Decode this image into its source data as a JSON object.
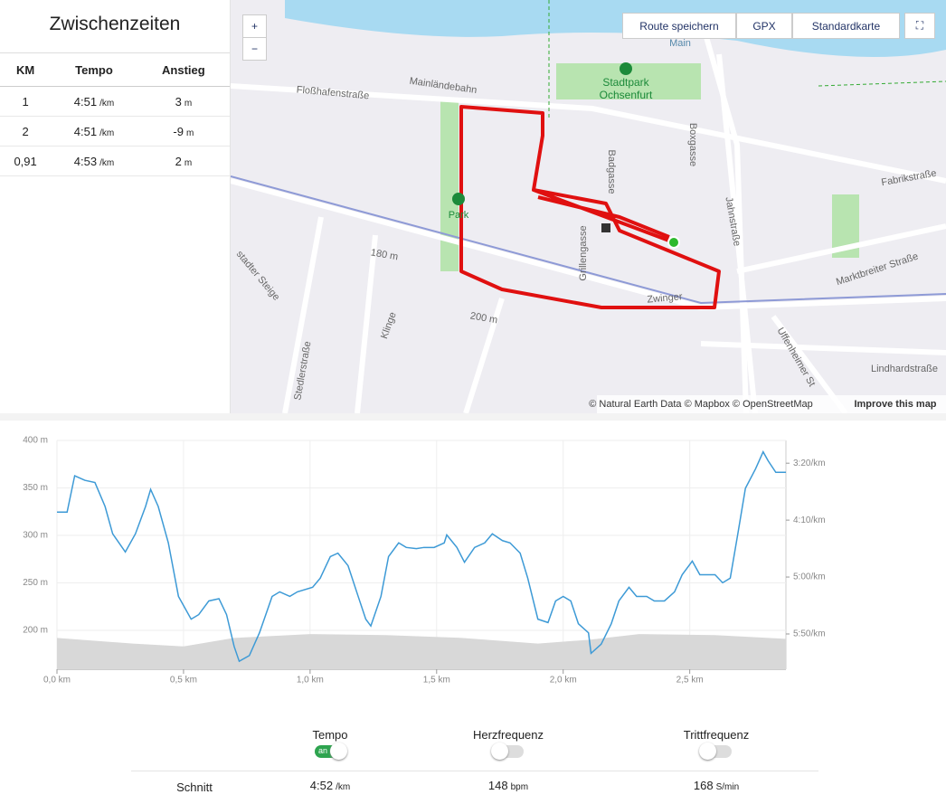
{
  "splits": {
    "title": "Zwischenzeiten",
    "headers": [
      "KM",
      "Tempo",
      "Anstieg"
    ],
    "rows": [
      {
        "km": "1",
        "tempo": "4:51",
        "tempo_unit": "/km",
        "ascent": "3",
        "ascent_unit": "m"
      },
      {
        "km": "2",
        "tempo": "4:51",
        "tempo_unit": "/km",
        "ascent": "-9",
        "ascent_unit": "m"
      },
      {
        "km": "0,91",
        "tempo": "4:53",
        "tempo_unit": "/km",
        "ascent": "2",
        "ascent_unit": "m"
      }
    ]
  },
  "map": {
    "zoom_in": "+",
    "zoom_out": "−",
    "save_route": "Route speichern",
    "gpx": "GPX",
    "style": "Standardkarte",
    "labels": [
      "Main",
      "Mainländebahn",
      "Floßhafenstraße",
      "Stadtpark",
      "Ochsenfurt",
      "Park",
      "Badgasse",
      "Boxgasse",
      "Jahnstraße",
      "Fabrikstraße",
      "Grillengasse",
      "Marktbreiter Straße",
      "Zwinger",
      "180 m",
      "200 m",
      "stadter Steige",
      "Klinge",
      "Stedlerstraße",
      "Uffenheimer St",
      "Lindhardstraße"
    ],
    "attribution": "© Natural Earth Data © Mapbox © OpenStreetMap",
    "improve": "Improve this map"
  },
  "chart_data": {
    "type": "line",
    "xlim": [
      0,
      2.88
    ],
    "xticks": [
      {
        "value": 0,
        "label": "0,0 km"
      },
      {
        "value": 0.5,
        "label": "0,5 km"
      },
      {
        "value": 1,
        "label": "1,0 km"
      },
      {
        "value": 1.5,
        "label": "1,5 km"
      },
      {
        "value": 2,
        "label": "2,0 km"
      },
      {
        "value": 2.5,
        "label": "2,5 km"
      }
    ],
    "ylim": [
      159,
      400
    ],
    "yticks": [
      {
        "value": 200,
        "label": "200 m"
      },
      {
        "value": 250,
        "label": "250 m"
      },
      {
        "value": 300,
        "label": "300 m"
      },
      {
        "value": 350,
        "label": "350 m"
      },
      {
        "value": 400,
        "label": "400 m"
      }
    ],
    "y2lim": [
      381,
      180
    ],
    "y2ticks": [
      {
        "value": 200,
        "label": "3:20/km"
      },
      {
        "value": 250,
        "label": "4:10/km"
      },
      {
        "value": 300,
        "label": "5:00/km"
      },
      {
        "value": 350,
        "label": "5:50/km"
      }
    ],
    "grid": true,
    "series": [
      {
        "type": "area",
        "color": "#d8d8d8",
        "x": [
          0,
          0.3,
          0.5,
          0.7,
          1.0,
          1.3,
          1.6,
          1.9,
          2.1,
          2.3,
          2.6,
          2.88
        ],
        "values": [
          192,
          186,
          183,
          192,
          196,
          195,
          192,
          186,
          190,
          196,
          195,
          191
        ]
      },
      {
        "type": "line",
        "axis": "y2",
        "color": "#3d9ad6",
        "x": [
          0,
          0.04,
          0.07,
          0.11,
          0.15,
          0.19,
          0.22,
          0.27,
          0.31,
          0.35,
          0.37,
          0.4,
          0.44,
          0.48,
          0.53,
          0.56,
          0.6,
          0.64,
          0.67,
          0.7,
          0.72,
          0.76,
          0.8,
          0.85,
          0.88,
          0.92,
          0.95,
          1.01,
          1.04,
          1.08,
          1.11,
          1.15,
          1.19,
          1.22,
          1.24,
          1.28,
          1.31,
          1.35,
          1.38,
          1.42,
          1.45,
          1.49,
          1.53,
          1.54,
          1.58,
          1.61,
          1.65,
          1.69,
          1.72,
          1.76,
          1.79,
          1.83,
          1.86,
          1.9,
          1.94,
          1.97,
          2.0,
          2.03,
          2.06,
          2.1,
          2.11,
          2.15,
          2.19,
          2.22,
          2.26,
          2.29,
          2.33,
          2.36,
          2.4,
          2.44,
          2.47,
          2.51,
          2.54,
          2.6,
          2.63,
          2.66,
          2.69,
          2.72,
          2.76,
          2.79,
          2.81,
          2.84,
          2.88
        ],
        "values": [
          243,
          243,
          211,
          215,
          217,
          238,
          262,
          278,
          262,
          238,
          223,
          238,
          270,
          317,
          337,
          333,
          321,
          319,
          333,
          361,
          374,
          369,
          349,
          317,
          313,
          317,
          313,
          309,
          301,
          282,
          279,
          290,
          317,
          337,
          343,
          317,
          282,
          270,
          274,
          275,
          274,
          274,
          270,
          263,
          274,
          287,
          274,
          270,
          262,
          268,
          270,
          279,
          301,
          337,
          340,
          321,
          317,
          321,
          341,
          349,
          367,
          359,
          341,
          321,
          309,
          317,
          317,
          321,
          321,
          313,
          298,
          286,
          298,
          298,
          305,
          301,
          262,
          222,
          205,
          190,
          198,
          208,
          208
        ]
      }
    ]
  },
  "stats": {
    "toggles": [
      {
        "label": "Tempo",
        "on": true,
        "state": "an"
      },
      {
        "label": "Herzfrequenz",
        "on": false
      },
      {
        "label": "Trittfrequenz",
        "on": false
      }
    ],
    "average": {
      "label": "Schnitt",
      "items": [
        {
          "value": "4:52",
          "unit": "/km"
        },
        {
          "value": "148",
          "unit": "bpm"
        },
        {
          "value": "168",
          "unit": "S/min"
        }
      ]
    }
  }
}
